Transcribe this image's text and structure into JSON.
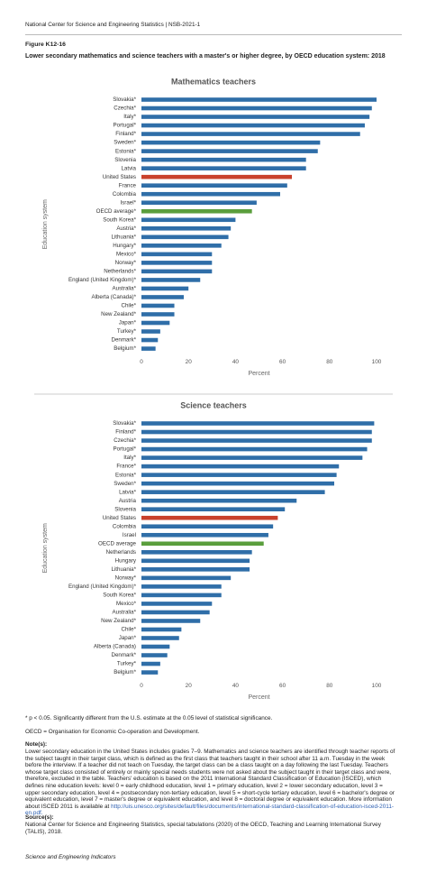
{
  "header": "National Center for Science and Engineering Statistics | NSB-2021-1",
  "figure_label": "Figure K12-16",
  "figure_title": "Lower secondary mathematics and science teachers with a master's or higher degree, by OECD education system: 2018",
  "chart_data": [
    {
      "type": "bar",
      "orientation": "horizontal",
      "title": "Mathematics teachers",
      "categories": [
        "Slovakia*",
        "Czechia*",
        "Italy*",
        "Portugal*",
        "Finland*",
        "Sweden*",
        "Estonia*",
        "Slovenia",
        "Latvia",
        "United States",
        "France",
        "Colombia",
        "Israel*",
        "OECD average*",
        "South Korea*",
        "Austria*",
        "Lithuania*",
        "Hungary*",
        "Mexico*",
        "Norway*",
        "Netherlands*",
        "England (United Kingdom)*",
        "Australia*",
        "Alberta (Canada)*",
        "Chile*",
        "New Zealand*",
        "Japan*",
        "Turkey*",
        "Denmark*",
        "Belgium*"
      ],
      "values": [
        100,
        98,
        97,
        95,
        93,
        76,
        75,
        70,
        70,
        64,
        62,
        59,
        49,
        47,
        40,
        38,
        37,
        34,
        30,
        30,
        30,
        25,
        20,
        18,
        14,
        14,
        12,
        8,
        7,
        6
      ],
      "colors": [
        "#2f6ea8",
        "#2f6ea8",
        "#2f6ea8",
        "#2f6ea8",
        "#2f6ea8",
        "#2f6ea8",
        "#2f6ea8",
        "#2f6ea8",
        "#2f6ea8",
        "#c9412c",
        "#2f6ea8",
        "#2f6ea8",
        "#2f6ea8",
        "#5a9e3c",
        "#2f6ea8",
        "#2f6ea8",
        "#2f6ea8",
        "#2f6ea8",
        "#2f6ea8",
        "#2f6ea8",
        "#2f6ea8",
        "#2f6ea8",
        "#2f6ea8",
        "#2f6ea8",
        "#2f6ea8",
        "#2f6ea8",
        "#2f6ea8",
        "#2f6ea8",
        "#2f6ea8",
        "#2f6ea8"
      ],
      "xlim": [
        0,
        100
      ],
      "xticks": [
        0,
        20,
        40,
        60,
        80,
        100
      ],
      "xlabel": "Percent",
      "ylabel": "Education system",
      "grid": false
    },
    {
      "type": "bar",
      "orientation": "horizontal",
      "title": "Science teachers",
      "categories": [
        "Slovakia*",
        "Finland*",
        "Czechia*",
        "Portugal*",
        "Italy*",
        "France*",
        "Estonia*",
        "Sweden*",
        "Latvia*",
        "Austria",
        "Slovenia",
        "United States",
        "Colombia",
        "Israel",
        "OECD average",
        "Netherlands",
        "Hungary",
        "Lithuania*",
        "Norway*",
        "England (United Kingdom)*",
        "South Korea*",
        "Mexico*",
        "Australia*",
        "New Zealand*",
        "Chile*",
        "Japan*",
        "Alberta (Canada)",
        "Denmark*",
        "Turkey*",
        "Belgium*"
      ],
      "values": [
        99,
        98,
        98,
        96,
        94,
        84,
        83,
        82,
        78,
        66,
        61,
        58,
        56,
        54,
        52,
        47,
        46,
        46,
        38,
        34,
        34,
        30,
        29,
        25,
        17,
        16,
        12,
        11,
        8,
        7
      ],
      "colors": [
        "#2f6ea8",
        "#2f6ea8",
        "#2f6ea8",
        "#2f6ea8",
        "#2f6ea8",
        "#2f6ea8",
        "#2f6ea8",
        "#2f6ea8",
        "#2f6ea8",
        "#2f6ea8",
        "#2f6ea8",
        "#c9412c",
        "#2f6ea8",
        "#2f6ea8",
        "#5a9e3c",
        "#2f6ea8",
        "#2f6ea8",
        "#2f6ea8",
        "#2f6ea8",
        "#2f6ea8",
        "#2f6ea8",
        "#2f6ea8",
        "#2f6ea8",
        "#2f6ea8",
        "#2f6ea8",
        "#2f6ea8",
        "#2f6ea8",
        "#2f6ea8",
        "#2f6ea8",
        "#2f6ea8"
      ],
      "xlim": [
        0,
        100
      ],
      "xticks": [
        0,
        20,
        40,
        60,
        80,
        100
      ],
      "xlabel": "Percent",
      "ylabel": "Education system",
      "grid": false
    }
  ],
  "footnotes": {
    "significance": "* p < 0.05. Significantly different from the U.S. estimate at the 0.05 level of statistical significance.",
    "abbreviation": "OECD = Organisation for Economic Co-operation and Development.",
    "notes_heading": "Note(s):",
    "notes_text": "Lower secondary education in the United States includes grades 7–9. Mathematics and science teachers are identified through teacher reports of the subject taught in their target class, which is defined as the first class that teachers taught in their school after 11 a.m. Tuesday in the week before the interview. If a teacher did not teach on Tuesday, the target class can be a class taught on a day following the last Tuesday. Teachers whose target class consisted of entirely or mainly special needs students were not asked about the subject taught in their target class and were, therefore, excluded in the table. Teachers' education is based on the 2011 International Standard Classification of Education (ISCED), which defines nine education levels: level 0 = early childhood education, level 1 = primary education, level 2 = lower secondary education, level 3 = upper secondary education, level 4 = postsecondary non-tertiary education, level 5 = short-cycle tertiary education, level 6 = bachelor's degree or equivalent education, level 7 = master's degree or equivalent education, and level 8 = doctoral degree or equivalent education. More information about ISCED 2011 is available at",
    "notes_link": "http://uis.unesco.org/sites/default/files/documents/international-standard-classification-of-education-isced-2011-en.pdf.",
    "sources_heading": "Source(s):",
    "sources_text": "National Center for Science and Engineering Statistics, special tabulations (2020) of the OECD, Teaching and Learning International Survey (TALIS), 2018.",
    "publication": "Science and Engineering Indicators"
  }
}
